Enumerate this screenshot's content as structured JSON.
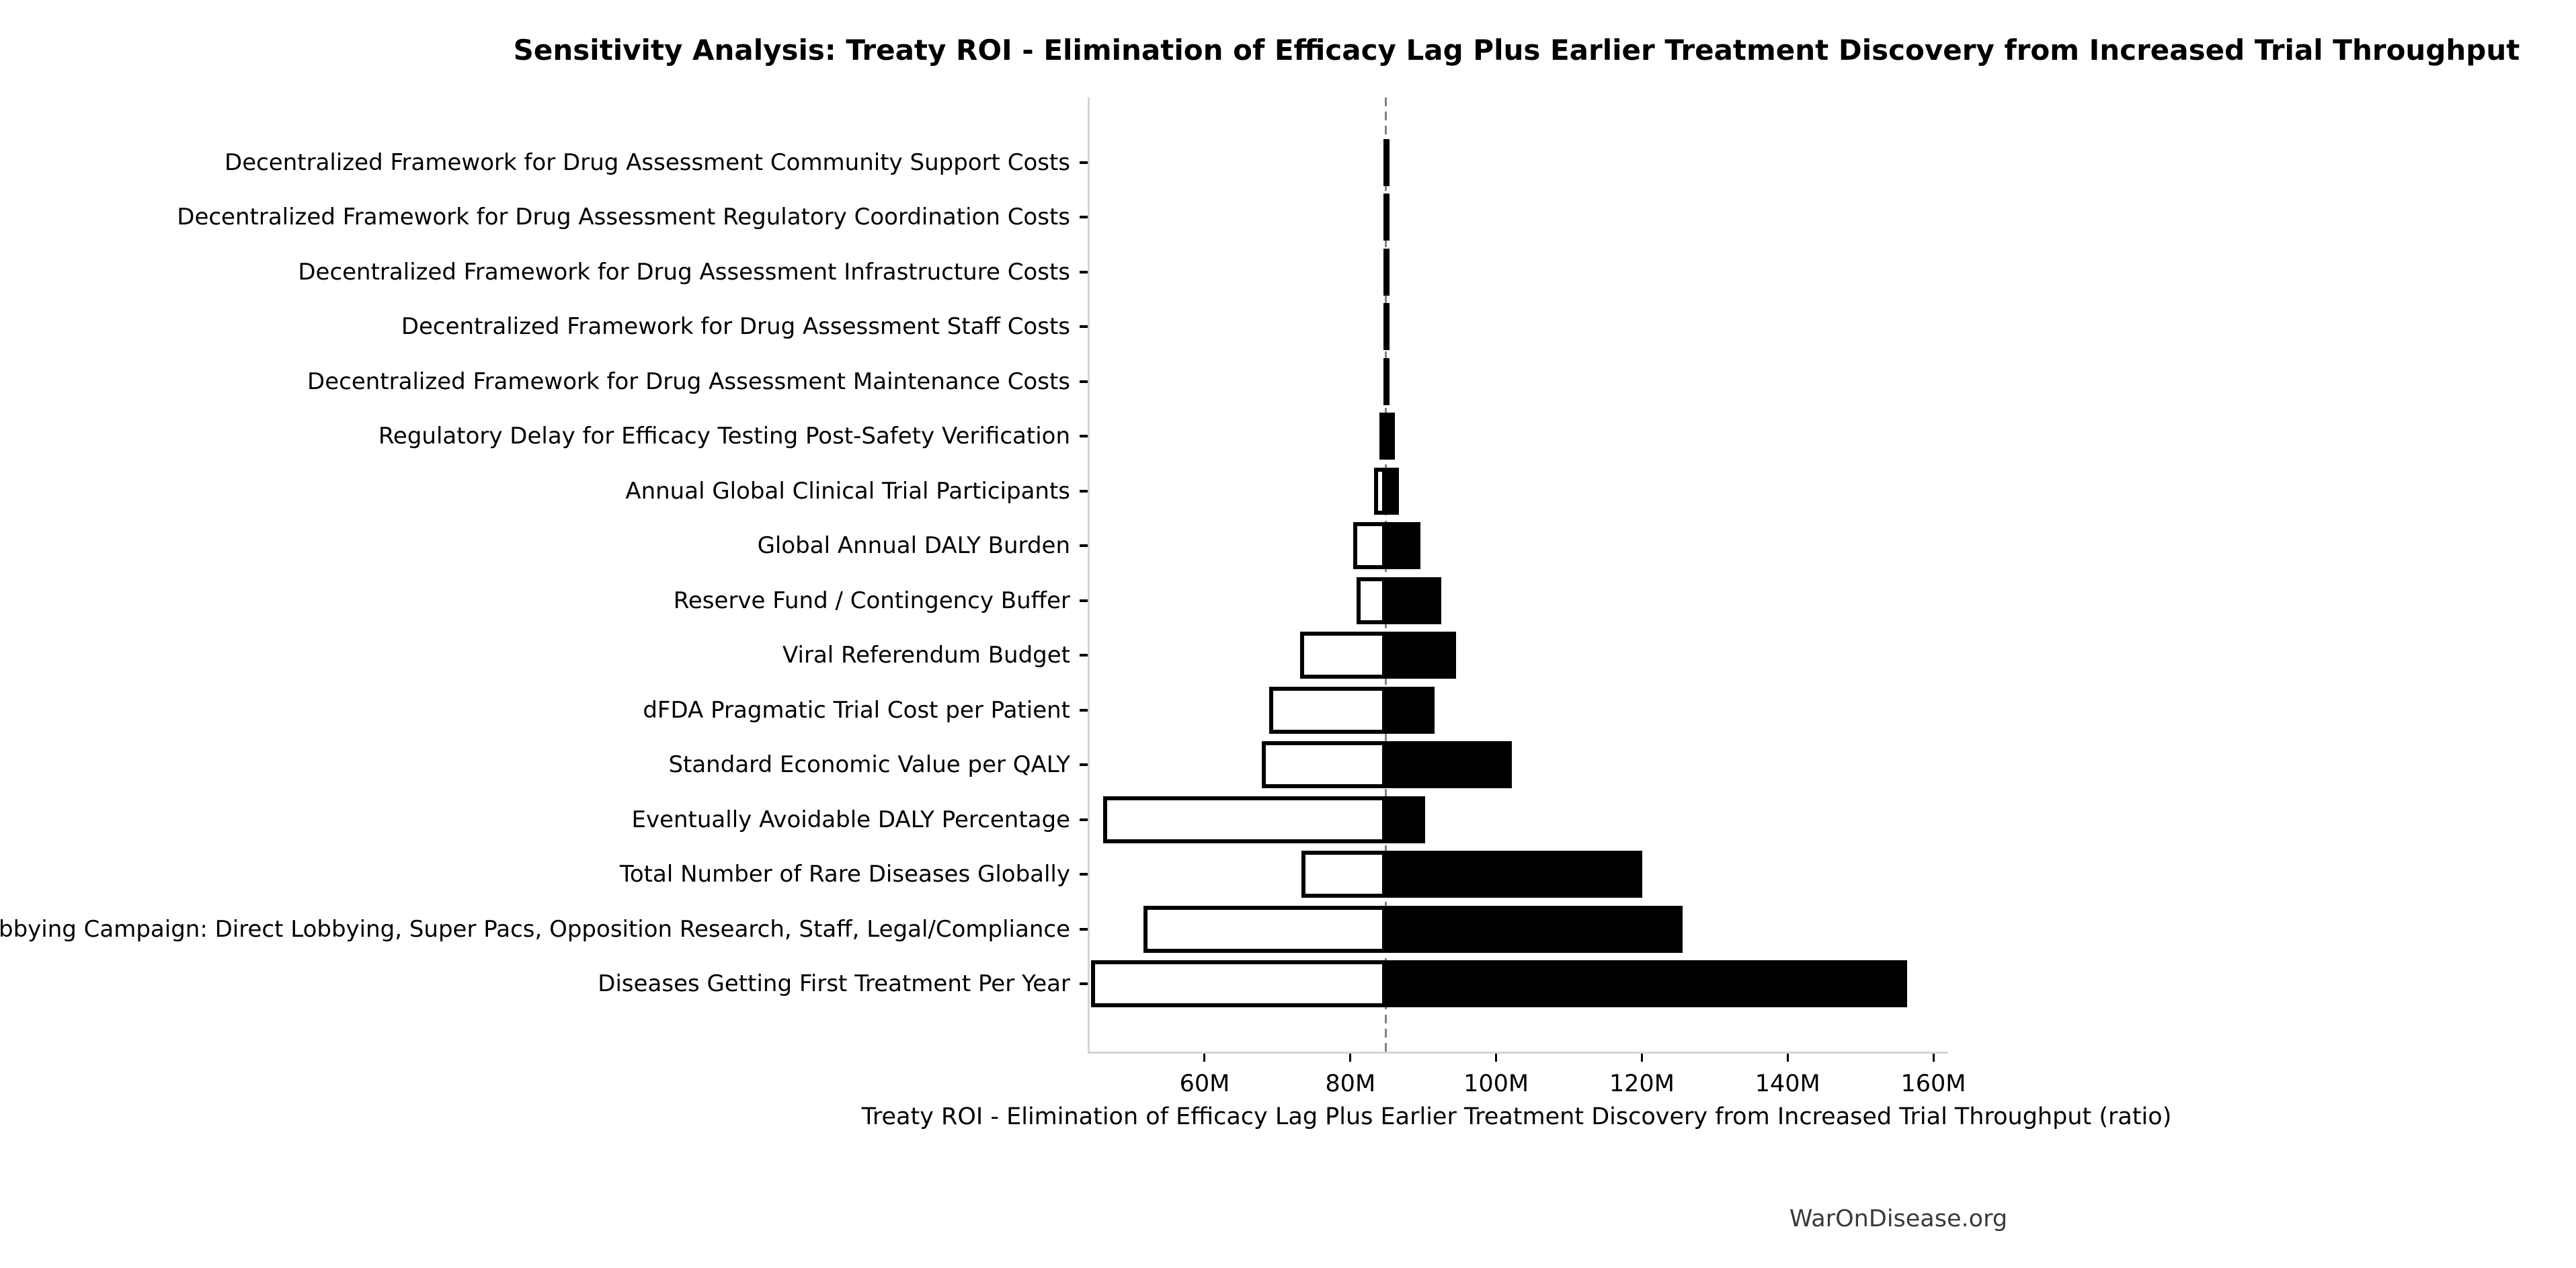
{
  "header": {
    "title": "Sensitivity Analysis: Treaty ROI - Elimination of Efficacy Lag Plus Earlier Treatment Discovery from Increased Trial Throughput"
  },
  "footer": {
    "text": "WarOnDisease.org"
  },
  "colors": {
    "bar_fill_high": "#000000",
    "bar_fill_low": "#ffffff",
    "bar_border": "#000000",
    "baseline_dash": "#808080",
    "axis_spine": "#d4d4d4",
    "footer_text": "#3a3a3a",
    "background": "#ffffff"
  },
  "chart_data": {
    "type": "bar",
    "variant": "tornado",
    "orientation": "horizontal",
    "title": "Sensitivity Analysis: Treaty ROI - Elimination of Efficacy Lag Plus Earlier Treatment Discovery from Increased Trial Throughput",
    "xlabel": "Treaty ROI - Elimination of Efficacy Lag Plus Earlier Treatment Discovery from Increased Trial Throughput (ratio)",
    "unit": "M",
    "xlim": [
      43.95,
      161.75
    ],
    "baseline_value": 84.6,
    "grid": false,
    "legend": "none",
    "x_ticks": [
      {
        "value": 60,
        "label": "60M"
      },
      {
        "value": 80,
        "label": "80M"
      },
      {
        "value": 100,
        "label": "100M"
      },
      {
        "value": 120,
        "label": "120M"
      },
      {
        "value": 140,
        "label": "140M"
      },
      {
        "value": 160,
        "label": "160M"
      }
    ],
    "rows": [
      {
        "label": "Decentralized Framework for Drug Assessment Community Support Costs",
        "low": 84.3,
        "high": 85.1
      },
      {
        "label": "Decentralized Framework for Drug Assessment Regulatory Coordination Costs",
        "low": 84.3,
        "high": 85.1
      },
      {
        "label": "Decentralized Framework for Drug Assessment Infrastructure Costs",
        "low": 84.3,
        "high": 85.1
      },
      {
        "label": "Decentralized Framework for Drug Assessment Staff Costs",
        "low": 84.3,
        "high": 85.1
      },
      {
        "label": "Decentralized Framework for Drug Assessment Maintenance Costs",
        "low": 84.3,
        "high": 85.1
      },
      {
        "label": "Regulatory Delay for Efficacy Testing Post-Safety Verification",
        "low": 83.7,
        "high": 85.8
      },
      {
        "label": "Annual Global Clinical Trial Participants",
        "low": 83.0,
        "high": 86.4
      },
      {
        "label": "Global Annual DALY Burden",
        "low": 80.1,
        "high": 89.3
      },
      {
        "label": "Reserve Fund / Contingency Buffer",
        "low": 80.6,
        "high": 92.2
      },
      {
        "label": "Viral Referendum Budget",
        "low": 72.8,
        "high": 94.2
      },
      {
        "label": "dFDA Pragmatic Trial Cost per Patient",
        "low": 68.6,
        "high": 91.3
      },
      {
        "label": "Standard Economic Value per QALY",
        "low": 67.6,
        "high": 101.9
      },
      {
        "label": "Eventually Avoidable DALY Percentage",
        "low": 45.8,
        "high": 90.0
      },
      {
        "label": "Total Number of Rare Diseases Globally",
        "low": 73.0,
        "high": 119.8
      },
      {
        "label": "Political Lobbying Campaign: Direct Lobbying, Super Pacs, Opposition Research, Staff, Legal/Compliance",
        "low": 51.3,
        "high": 125.3
      },
      {
        "label": "Diseases Getting First Treatment Per Year",
        "low": 44.1,
        "high": 156.1
      }
    ]
  }
}
